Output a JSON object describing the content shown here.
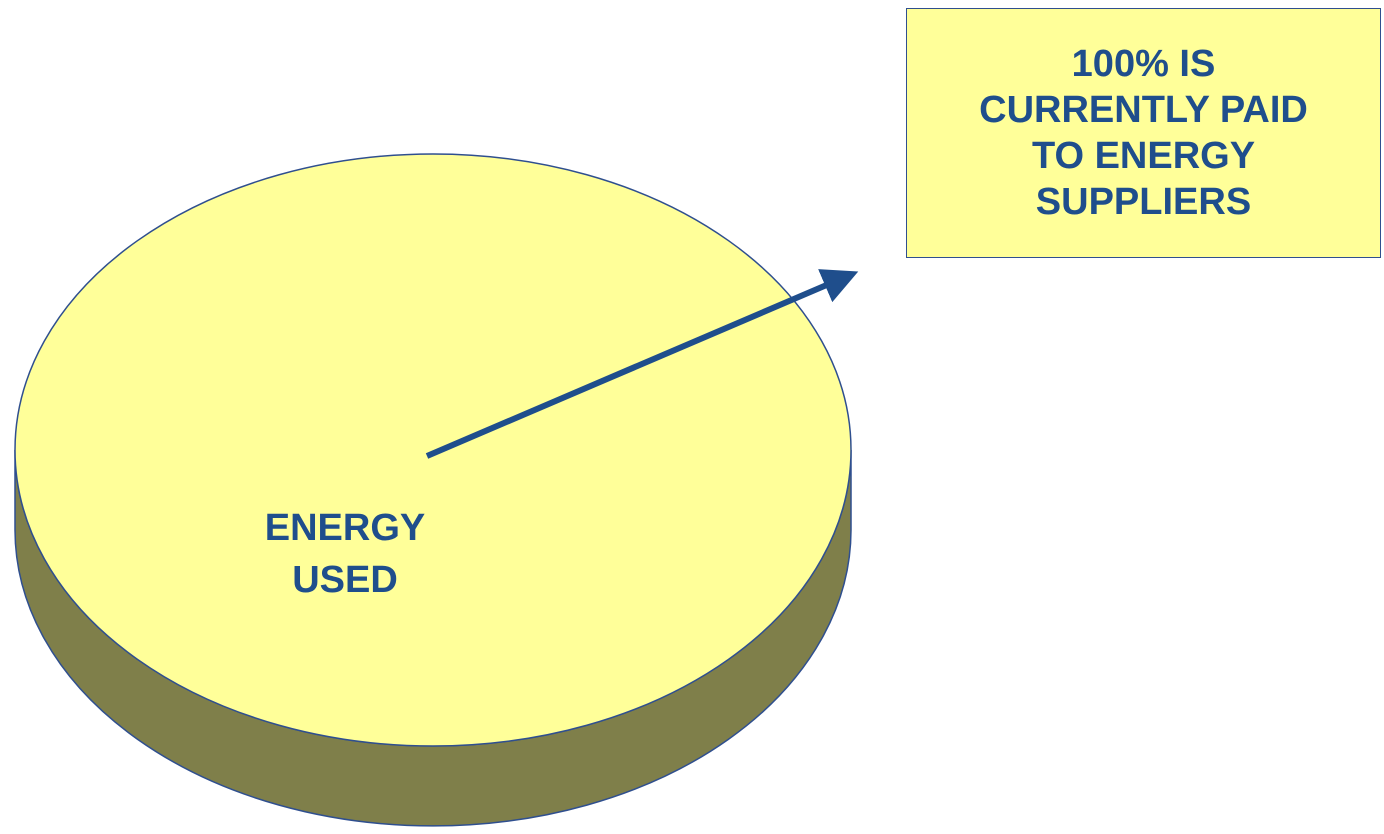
{
  "colors": {
    "pie_top": "#ffff99",
    "pie_side": "#7f7f4a",
    "outline": "#2f4f8f",
    "text": "#1f4e8c",
    "arrow": "#1f4e8c",
    "callout_fill": "#ffff99"
  },
  "chart_data": {
    "type": "pie",
    "style": "3d",
    "slices": [
      {
        "label": "ENERGY USED",
        "value": 100
      }
    ],
    "label_lines": [
      "ENERGY",
      "USED"
    ],
    "annotation": {
      "lines": [
        "100% IS",
        "CURRENTLY PAID",
        "TO ENERGY",
        "SUPPLIERS"
      ]
    }
  }
}
